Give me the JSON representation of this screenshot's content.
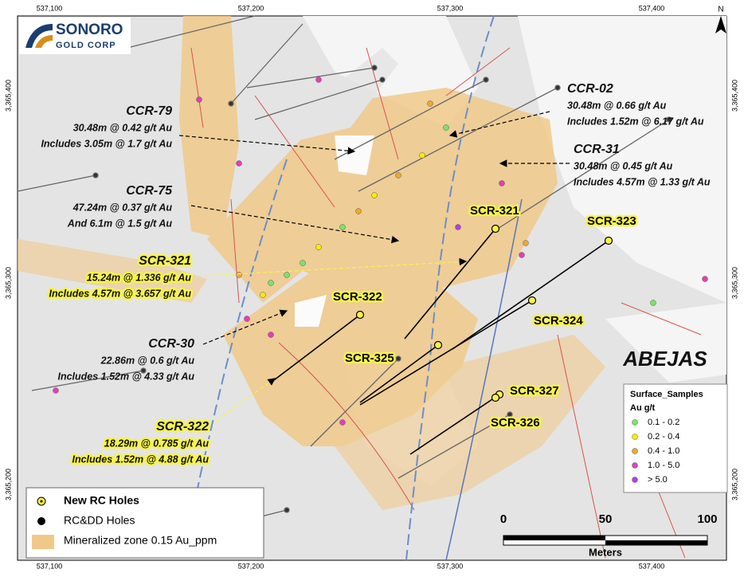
{
  "logo": {
    "name": "SONORO",
    "subtitle": "GOLD CORP"
  },
  "north": "N",
  "grid_labels": {
    "top": [
      "537,100",
      "537,200",
      "537,300",
      "537,400"
    ],
    "bottom": [
      "537,100",
      "537,200",
      "537,300",
      "537,400"
    ],
    "left": [
      "3,365,400",
      "3,365,300",
      "3,365,200"
    ],
    "right": [
      "3,365,400",
      "3,365,300",
      "3,365,200"
    ]
  },
  "callouts": [
    {
      "hole": "CCR-79",
      "lines": [
        "30.48m @ 0.42 g/t Au",
        "Includes 3.05m @ 1.7 g/t Au"
      ]
    },
    {
      "hole": "CCR-75",
      "lines": [
        "47.24m @ 0.37 g/t Au",
        "And 6.1m @ 1.5 g/t Au"
      ]
    },
    {
      "hole": "SCR-321",
      "lines": [
        "15.24m @ 1.336 g/t Au",
        "Includes 4.57m @ 3.657 g/t Au"
      ]
    },
    {
      "hole": "CCR-30",
      "lines": [
        "22.86m @ 0.6 g/t Au",
        "Includes 1.52m @ 4.33 g/t Au"
      ]
    },
    {
      "hole": "SCR-322",
      "lines": [
        "18.29m @ 0.785 g/t Au",
        "Includes 1.52m @ 4.88 g/t Au"
      ]
    },
    {
      "hole": "CCR-02",
      "lines": [
        "30.48m @ 0.66 g/t Au",
        "Includes 1.52m @ 6.17 g/t Au"
      ]
    },
    {
      "hole": "CCR-31",
      "lines": [
        "30.48m @ 0.45 g/t Au",
        "Includes 4.57m @ 1.33 g/t Au"
      ]
    }
  ],
  "hole_labels": [
    "SCR-321",
    "SCR-323",
    "SCR-322",
    "SCR-324",
    "SCR-325",
    "SCR-327",
    "SCR-326"
  ],
  "area_label": "ABEJAS",
  "sample_legend": {
    "title": "Surface_Samples",
    "unit": "Au g/t",
    "classes": [
      "0.1 - 0.2",
      "0.2 - 0.4",
      "0.4 - 1.0",
      "1.0 - 5.0",
      "> 5.0"
    ]
  },
  "map_legend": {
    "items": [
      "New RC Holes",
      "RC&DD Holes",
      "Mineralized zone 0.15 Au_ppm"
    ]
  },
  "scale_bar": {
    "ticks": [
      0,
      50,
      100
    ],
    "unit": "Meters"
  }
}
